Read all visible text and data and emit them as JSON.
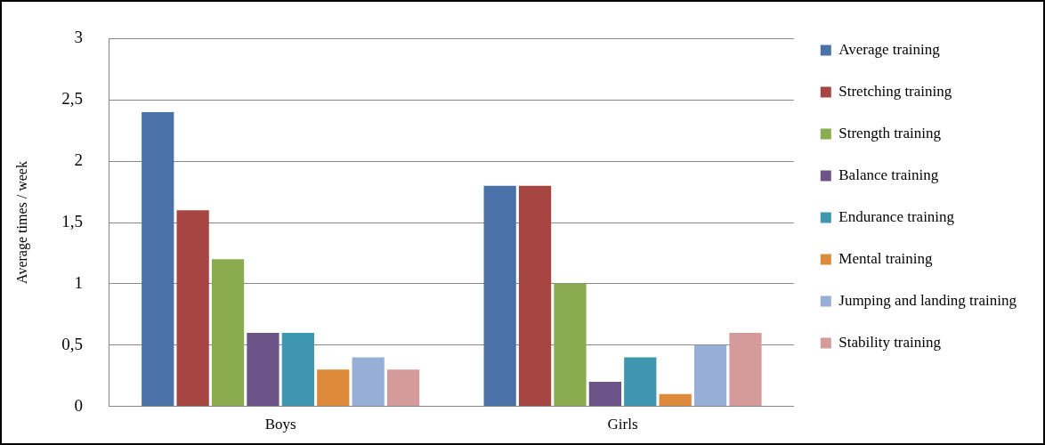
{
  "chart_data": {
    "type": "bar",
    "ylabel": "Average times / week",
    "categories": [
      "Boys",
      "Girls"
    ],
    "series": [
      {
        "name": "Average training",
        "color": "#4a72a8",
        "values": [
          2.4,
          1.8
        ]
      },
      {
        "name": "Stretching training",
        "color": "#a64542",
        "values": [
          1.6,
          1.8
        ]
      },
      {
        "name": "Strength training",
        "color": "#8aab4f",
        "values": [
          1.2,
          1.0
        ]
      },
      {
        "name": "Balance training",
        "color": "#6c5489",
        "values": [
          0.6,
          0.2
        ]
      },
      {
        "name": "Endurance training",
        "color": "#3e97ae",
        "values": [
          0.6,
          0.4
        ]
      },
      {
        "name": "Mental training",
        "color": "#dd8a3b",
        "values": [
          0.3,
          0.1
        ]
      },
      {
        "name": "Jumping and landing training",
        "color": "#97aed6",
        "values": [
          0.4,
          0.5
        ]
      },
      {
        "name": "Stability training",
        "color": "#d59b9a",
        "values": [
          0.3,
          0.6
        ]
      }
    ],
    "ylim": [
      0,
      3
    ],
    "yticks": [
      0,
      {
        "value": 0.5,
        "label": "0,5"
      },
      1,
      {
        "value": 1.5,
        "label": "1,5"
      },
      2,
      {
        "value": 2.5,
        "label": "2,5"
      },
      3
    ],
    "grid": "y",
    "legend": "right"
  }
}
